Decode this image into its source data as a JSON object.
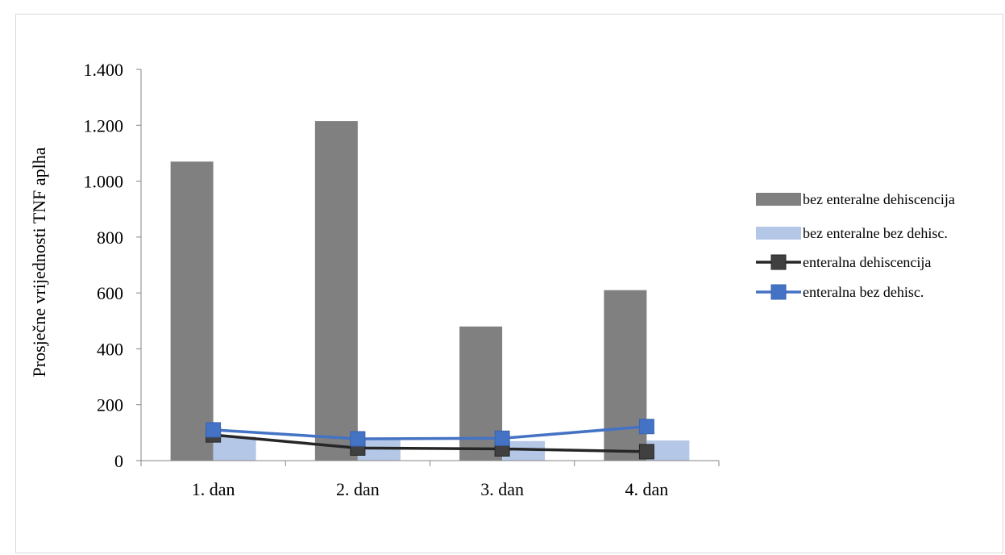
{
  "chart_data": {
    "type": "bar",
    "title": "",
    "ylabel": "Prosječne vrijednosti TNF aplha",
    "xlabel": "",
    "categories": [
      "1. dan",
      "2. dan",
      "3. dan",
      "4. dan"
    ],
    "ylim": [
      0,
      1400
    ],
    "yticks": [
      0,
      200,
      400,
      600,
      800,
      1000,
      1200,
      1400
    ],
    "ytick_labels": [
      "0",
      "200",
      "400",
      "600",
      "800",
      "1.000",
      "1.200",
      "1.400"
    ],
    "grid": false,
    "legend_position": "right",
    "series": [
      {
        "name": "bez enteralne dehiscencija",
        "kind": "bar",
        "color": "#808080",
        "values": [
          1070,
          1215,
          480,
          610
        ]
      },
      {
        "name": "bez enteralne bez dehisc.",
        "kind": "bar",
        "color": "#b4c7e7",
        "values": [
          85,
          80,
          70,
          72
        ]
      },
      {
        "name": "enteralna dehiscencija",
        "kind": "line",
        "color": "#262626",
        "marker_color": "#404040",
        "values": [
          92,
          45,
          42,
          32
        ]
      },
      {
        "name": "enteralna bez dehisc.",
        "kind": "line",
        "color": "#4472c4",
        "marker_color": "#4472c4",
        "values": [
          110,
          78,
          80,
          122
        ]
      }
    ]
  }
}
